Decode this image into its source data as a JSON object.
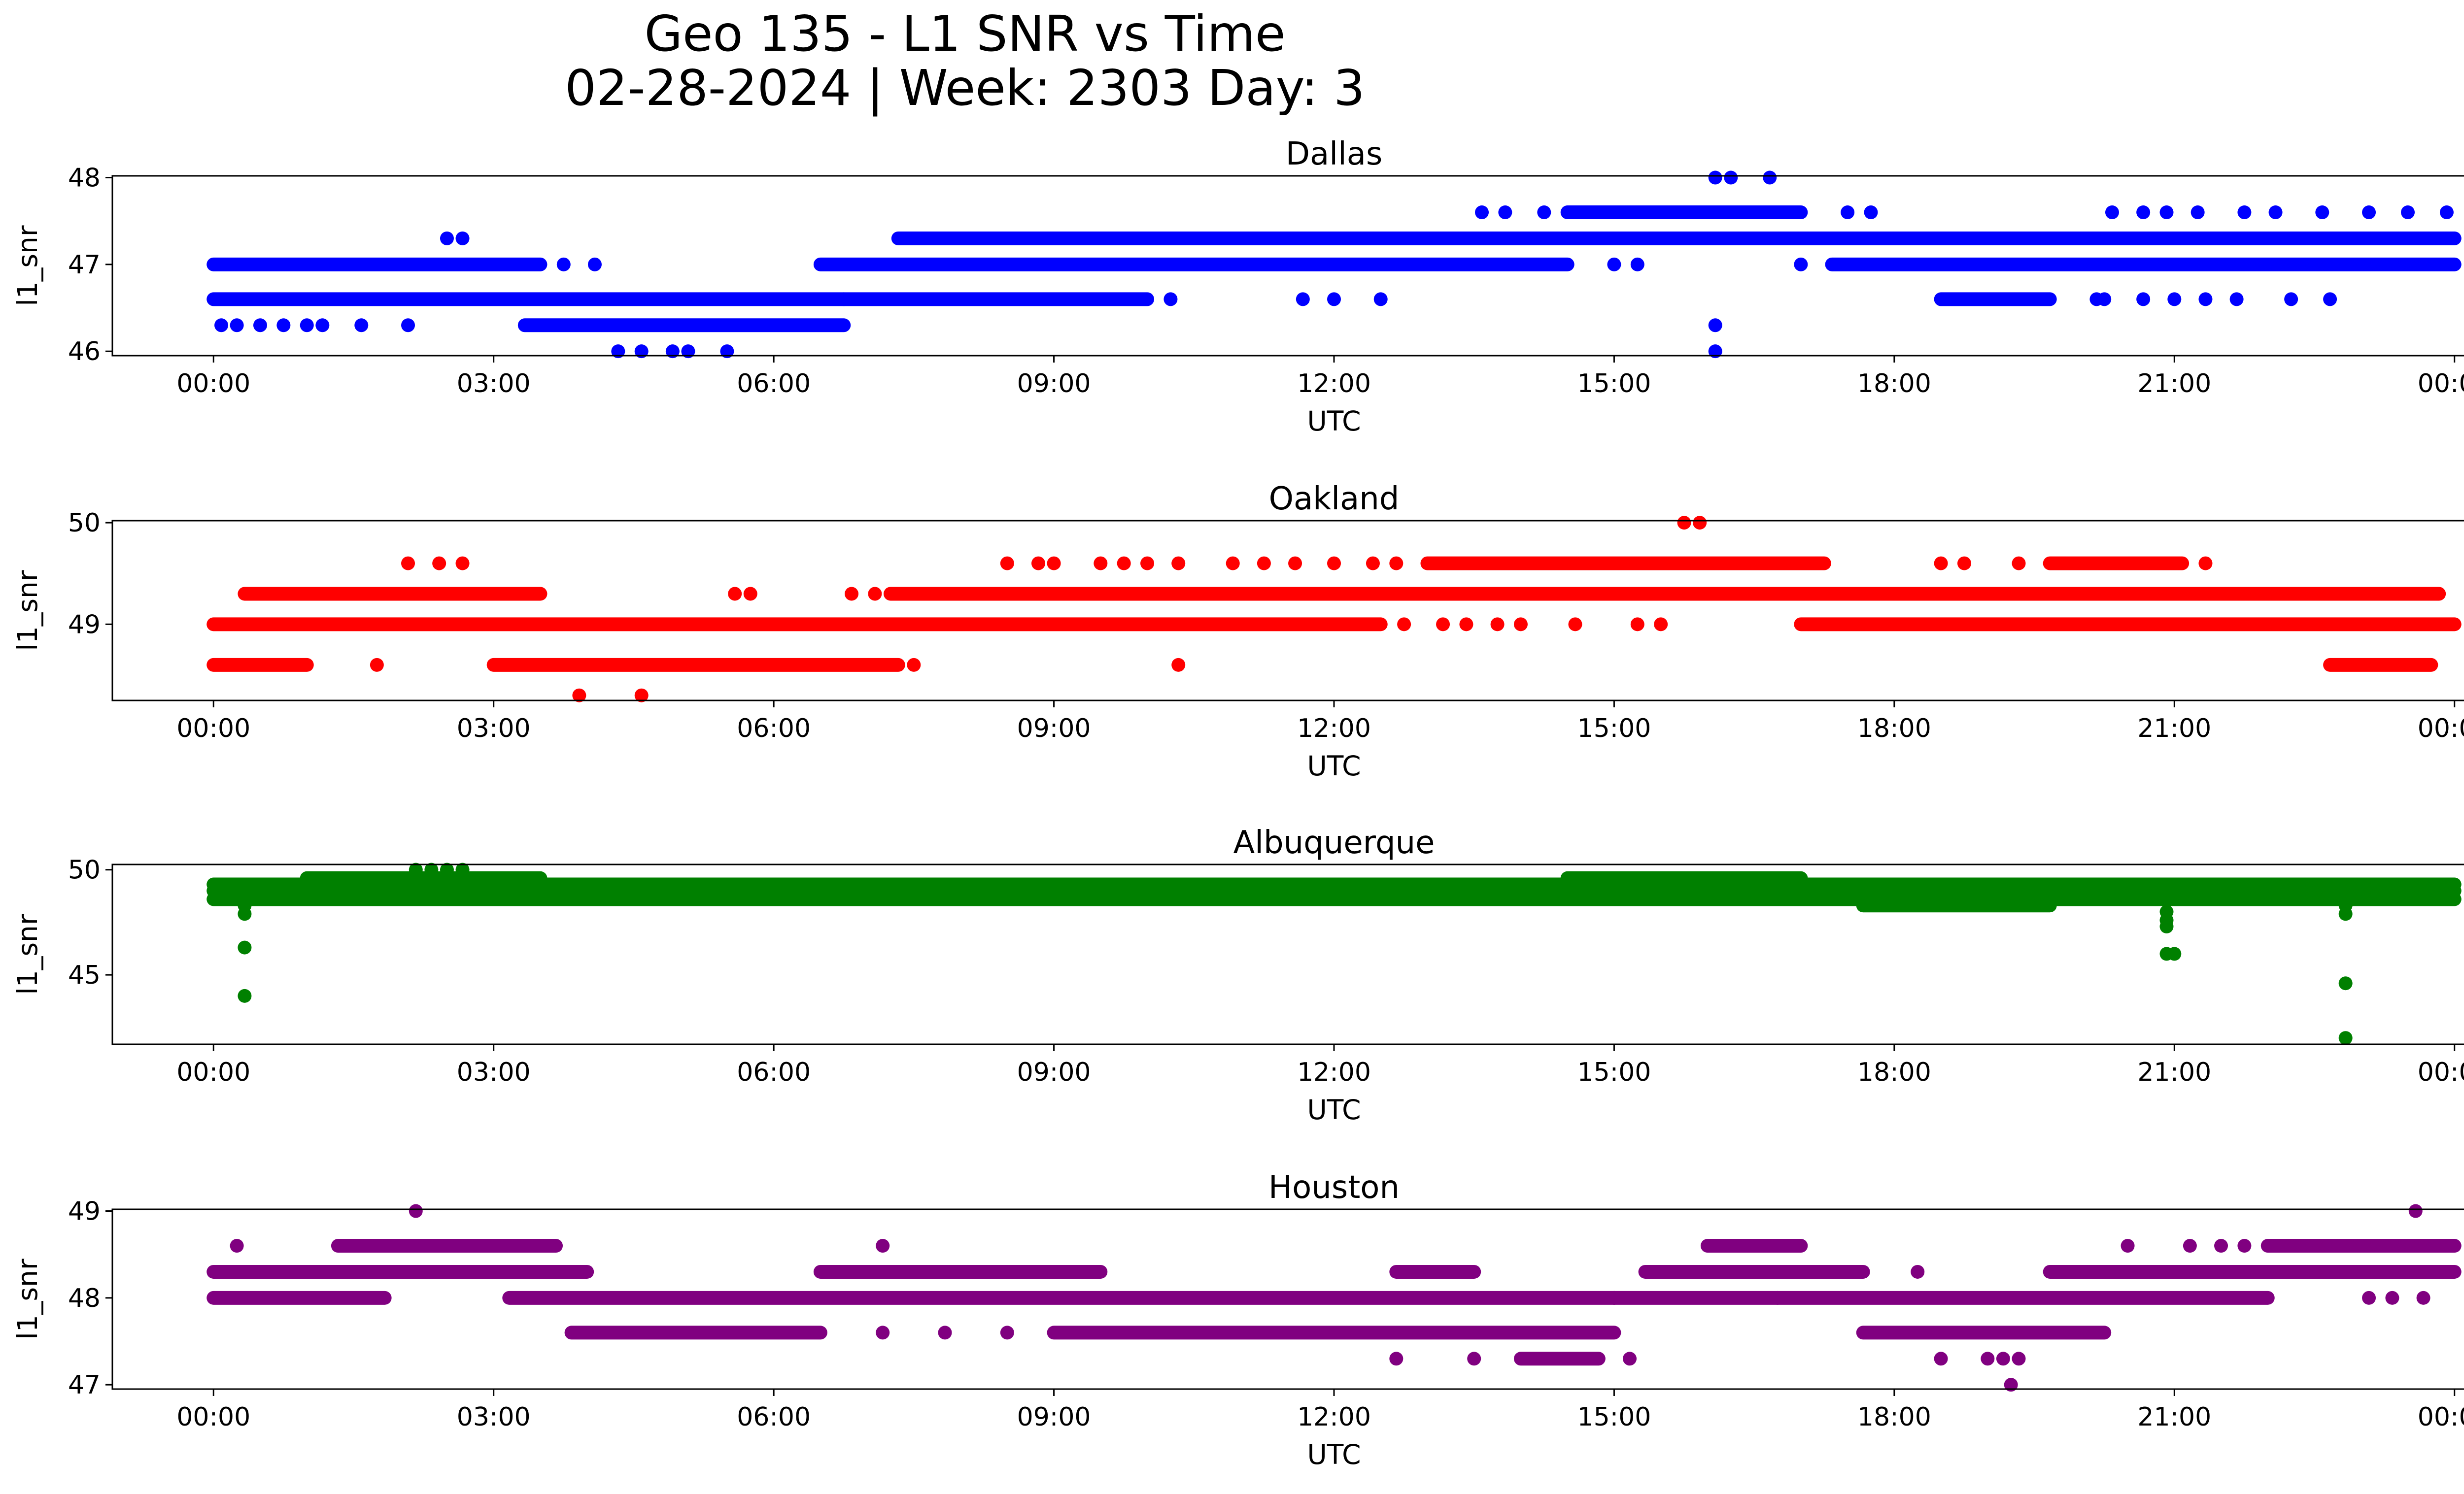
{
  "figure": {
    "title_line1": "Geo 135 - L1 SNR vs Time",
    "title_line2": "02-28-2024 | Week: 2303 Day: 3"
  },
  "chart_data": [
    {
      "type": "scatter",
      "title": "Dallas",
      "xlabel": "UTC",
      "ylabel": "l1_snr",
      "color": "#0000ff",
      "xlim": [
        "2024-02-27 22:55",
        "2024-02-29 01:05"
      ],
      "ylim": [
        45.95,
        48.02
      ],
      "x_ticks": [
        "00:00",
        "03:00",
        "06:00",
        "09:00",
        "12:00",
        "15:00",
        "18:00",
        "21:00",
        "00:00"
      ],
      "y_ticks": [
        46,
        47,
        48
      ],
      "grid": false,
      "bands": [
        {
          "snr": 47.0,
          "segments": [
            [
              "00:00",
              "03:30"
            ],
            [
              "06:30",
              "14:30"
            ],
            [
              "17:20",
              "24:00"
            ]
          ]
        },
        {
          "snr": 46.6,
          "segments": [
            [
              "00:00",
              "06:45"
            ],
            [
              "06:45",
              "10:00"
            ],
            [
              "18:30",
              "19:40"
            ]
          ]
        },
        {
          "snr": 46.3,
          "segments": [
            [
              "03:20",
              "06:45"
            ]
          ]
        },
        {
          "snr": 47.3,
          "segments": [
            [
              "07:20",
              "24:00"
            ]
          ]
        },
        {
          "snr": 47.6,
          "segments": [
            [
              "14:30",
              "17:00"
            ]
          ]
        }
      ],
      "points": [
        [
          "00:05",
          46.3
        ],
        [
          "00:15",
          46.3
        ],
        [
          "00:30",
          46.3
        ],
        [
          "00:45",
          46.3
        ],
        [
          "01:00",
          46.3
        ],
        [
          "01:10",
          46.3
        ],
        [
          "01:35",
          46.3
        ],
        [
          "02:05",
          46.3
        ],
        [
          "02:30",
          47.3
        ],
        [
          "02:40",
          47.3
        ],
        [
          "03:45",
          47.0
        ],
        [
          "04:05",
          47.0
        ],
        [
          "04:20",
          46.0
        ],
        [
          "04:35",
          46.0
        ],
        [
          "04:55",
          46.0
        ],
        [
          "05:05",
          46.0
        ],
        [
          "05:30",
          46.0
        ],
        [
          "10:15",
          46.6
        ],
        [
          "11:40",
          46.6
        ],
        [
          "12:00",
          46.6
        ],
        [
          "12:30",
          46.6
        ],
        [
          "13:35",
          47.6
        ],
        [
          "13:50",
          47.6
        ],
        [
          "14:15",
          47.6
        ],
        [
          "15:00",
          47.0
        ],
        [
          "15:15",
          47.0
        ],
        [
          "16:05",
          48.0
        ],
        [
          "16:15",
          48.0
        ],
        [
          "16:40",
          48.0
        ],
        [
          "16:05",
          46.3
        ],
        [
          "16:05",
          46.0
        ],
        [
          "17:00",
          47.0
        ],
        [
          "17:30",
          47.6
        ],
        [
          "17:45",
          47.6
        ],
        [
          "19:20",
          47.3
        ],
        [
          "20:10",
          46.6
        ],
        [
          "20:15",
          46.6
        ],
        [
          "20:40",
          46.6
        ],
        [
          "21:00",
          46.6
        ],
        [
          "21:20",
          46.6
        ],
        [
          "21:40",
          46.6
        ],
        [
          "22:15",
          46.6
        ],
        [
          "22:40",
          46.6
        ],
        [
          "20:20",
          47.6
        ],
        [
          "20:40",
          47.6
        ],
        [
          "20:55",
          47.6
        ],
        [
          "21:15",
          47.6
        ],
        [
          "21:45",
          47.6
        ],
        [
          "22:05",
          47.6
        ],
        [
          "22:35",
          47.6
        ],
        [
          "23:05",
          47.6
        ],
        [
          "23:30",
          47.6
        ],
        [
          "23:55",
          47.6
        ]
      ]
    },
    {
      "type": "scatter",
      "title": "Oakland",
      "xlabel": "UTC",
      "ylabel": "l1_snr",
      "color": "#ff0000",
      "xlim": [
        "2024-02-27 22:55",
        "2024-02-29 01:05"
      ],
      "ylim": [
        48.25,
        50.02
      ],
      "x_ticks": [
        "00:00",
        "03:00",
        "06:00",
        "09:00",
        "12:00",
        "15:00",
        "18:00",
        "21:00",
        "00:00"
      ],
      "y_ticks": [
        49,
        50
      ],
      "grid": false,
      "bands": [
        {
          "snr": 49.0,
          "segments": [
            [
              "00:00",
              "12:30"
            ],
            [
              "17:00",
              "24:00"
            ]
          ]
        },
        {
          "snr": 48.6,
          "segments": [
            [
              "00:00",
              "01:00"
            ],
            [
              "03:00",
              "07:20"
            ],
            [
              "22:40",
              "23:45"
            ]
          ]
        },
        {
          "snr": 49.3,
          "segments": [
            [
              "00:20",
              "03:30"
            ],
            [
              "07:15",
              "23:50"
            ]
          ]
        },
        {
          "snr": 49.6,
          "segments": [
            [
              "13:00",
              "17:15"
            ],
            [
              "19:40",
              "21:05"
            ]
          ]
        }
      ],
      "points": [
        [
          "01:45",
          48.6
        ],
        [
          "07:30",
          48.6
        ],
        [
          "10:20",
          48.6
        ],
        [
          "02:05",
          49.6
        ],
        [
          "02:25",
          49.6
        ],
        [
          "02:40",
          49.6
        ],
        [
          "05:35",
          49.3
        ],
        [
          "05:45",
          49.3
        ],
        [
          "06:50",
          49.3
        ],
        [
          "07:05",
          49.3
        ],
        [
          "03:55",
          48.3
        ],
        [
          "04:35",
          48.3
        ],
        [
          "08:30",
          49.6
        ],
        [
          "08:50",
          49.6
        ],
        [
          "09:00",
          49.6
        ],
        [
          "09:30",
          49.6
        ],
        [
          "09:45",
          49.6
        ],
        [
          "10:00",
          49.6
        ],
        [
          "10:20",
          49.6
        ],
        [
          "10:55",
          49.6
        ],
        [
          "11:15",
          49.6
        ],
        [
          "11:35",
          49.6
        ],
        [
          "12:00",
          49.6
        ],
        [
          "12:25",
          49.6
        ],
        [
          "12:40",
          49.6
        ],
        [
          "12:45",
          49.0
        ],
        [
          "13:10",
          49.0
        ],
        [
          "13:25",
          49.0
        ],
        [
          "13:45",
          49.0
        ],
        [
          "14:00",
          49.0
        ],
        [
          "14:35",
          49.0
        ],
        [
          "15:15",
          49.0
        ],
        [
          "15:30",
          49.0
        ],
        [
          "15:45",
          50.0
        ],
        [
          "15:55",
          50.0
        ],
        [
          "18:30",
          49.6
        ],
        [
          "18:45",
          49.6
        ],
        [
          "19:20",
          49.6
        ],
        [
          "21:20",
          49.6
        ]
      ]
    },
    {
      "type": "scatter",
      "title": "Albuquerque",
      "xlabel": "UTC",
      "ylabel": "l1_snr",
      "color": "#008000",
      "xlim": [
        "2024-02-27 22:55",
        "2024-02-29 01:05"
      ],
      "ylim": [
        41.7,
        50.25
      ],
      "x_ticks": [
        "00:00",
        "03:00",
        "06:00",
        "09:00",
        "12:00",
        "15:00",
        "18:00",
        "21:00",
        "00:00"
      ],
      "y_ticks": [
        45,
        50
      ],
      "grid": false,
      "bands": [
        {
          "snr": 49.0,
          "segments": [
            [
              "00:00",
              "24:00"
            ]
          ]
        },
        {
          "snr": 49.3,
          "segments": [
            [
              "00:00",
              "24:00"
            ]
          ]
        },
        {
          "snr": 48.6,
          "segments": [
            [
              "00:00",
              "24:00"
            ]
          ]
        },
        {
          "snr": 49.6,
          "segments": [
            [
              "01:00",
              "03:30"
            ],
            [
              "14:30",
              "17:00"
            ]
          ]
        },
        {
          "snr": 48.3,
          "segments": [
            [
              "17:40",
              "19:40"
            ]
          ]
        }
      ],
      "points": [
        [
          "02:10",
          50.0
        ],
        [
          "02:20",
          50.0
        ],
        [
          "02:30",
          50.0
        ],
        [
          "02:40",
          50.0
        ],
        [
          "00:20",
          48.3
        ],
        [
          "00:20",
          47.9
        ],
        [
          "00:20",
          46.3
        ],
        [
          "00:20",
          44.0
        ],
        [
          "20:55",
          48.0
        ],
        [
          "20:55",
          47.6
        ],
        [
          "20:55",
          47.3
        ],
        [
          "20:55",
          46.0
        ],
        [
          "21:00",
          46.0
        ],
        [
          "22:50",
          48.3
        ],
        [
          "22:50",
          47.9
        ],
        [
          "22:50",
          44.6
        ],
        [
          "22:50",
          42.0
        ]
      ]
    },
    {
      "type": "scatter",
      "title": "Houston",
      "xlabel": "UTC",
      "ylabel": "l1_snr",
      "color": "#800080",
      "xlim": [
        "2024-02-27 22:55",
        "2024-02-29 01:05"
      ],
      "ylim": [
        46.95,
        49.02
      ],
      "x_ticks": [
        "00:00",
        "03:00",
        "06:00",
        "09:00",
        "12:00",
        "15:00",
        "18:00",
        "21:00",
        "00:00"
      ],
      "y_ticks": [
        47,
        48,
        49
      ],
      "grid": false,
      "bands": [
        {
          "snr": 48.3,
          "segments": [
            [
              "00:00",
              "04:00"
            ],
            [
              "06:30",
              "09:30"
            ],
            [
              "12:40",
              "13:30"
            ],
            [
              "15:20",
              "17:40"
            ],
            [
              "19:40",
              "24:00"
            ]
          ]
        },
        {
          "snr": 48.0,
          "segments": [
            [
              "00:00",
              "01:50"
            ],
            [
              "03:10",
              "15:00"
            ],
            [
              "15:00",
              "22:00"
            ]
          ]
        },
        {
          "snr": 48.6,
          "segments": [
            [
              "01:20",
              "03:40"
            ],
            [
              "16:00",
              "17:00"
            ],
            [
              "22:00",
              "24:00"
            ]
          ]
        },
        {
          "snr": 47.6,
          "segments": [
            [
              "03:50",
              "06:30"
            ],
            [
              "09:00",
              "15:00"
            ],
            [
              "17:40",
              "20:15"
            ]
          ]
        },
        {
          "snr": 47.3,
          "segments": [
            [
              "14:00",
              "14:50"
            ]
          ]
        }
      ],
      "points": [
        [
          "00:15",
          48.6
        ],
        [
          "02:10",
          49.0
        ],
        [
          "07:10",
          48.6
        ],
        [
          "07:10",
          47.6
        ],
        [
          "07:50",
          47.6
        ],
        [
          "08:30",
          47.6
        ],
        [
          "12:40",
          47.3
        ],
        [
          "13:30",
          47.3
        ],
        [
          "15:10",
          47.3
        ],
        [
          "18:30",
          47.3
        ],
        [
          "19:00",
          47.3
        ],
        [
          "19:10",
          47.3
        ],
        [
          "19:20",
          47.3
        ],
        [
          "19:15",
          47.0
        ],
        [
          "16:45",
          48.0
        ],
        [
          "18:15",
          48.3
        ],
        [
          "15:00",
          48.0
        ],
        [
          "20:30",
          48.6
        ],
        [
          "21:10",
          48.6
        ],
        [
          "21:30",
          48.6
        ],
        [
          "21:45",
          48.6
        ],
        [
          "23:05",
          48.0
        ],
        [
          "23:20",
          48.0
        ],
        [
          "23:40",
          48.0
        ],
        [
          "23:35",
          49.0
        ]
      ]
    }
  ]
}
